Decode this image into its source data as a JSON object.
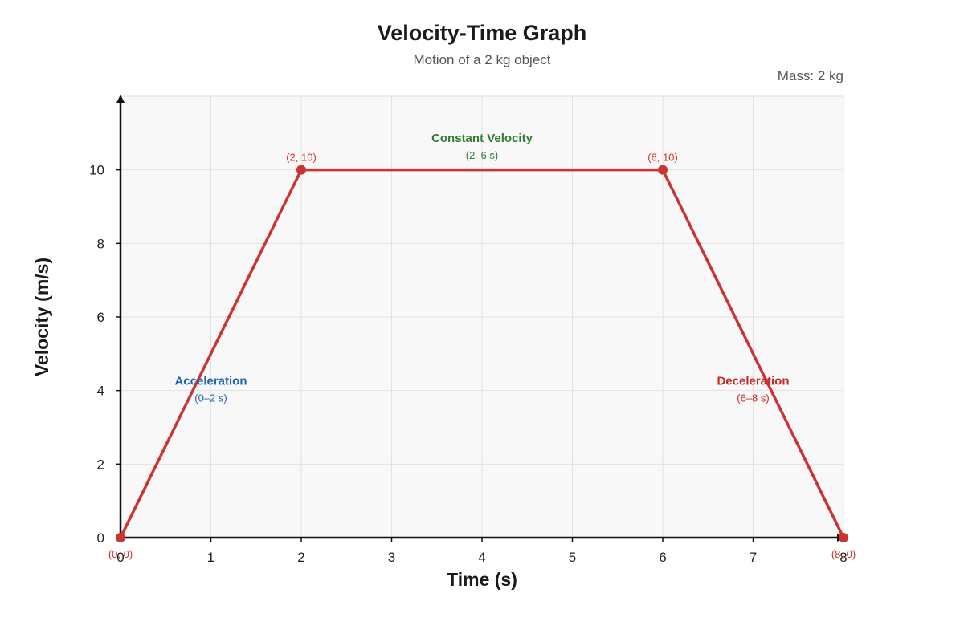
{
  "chart_data": {
    "type": "line",
    "title": "Velocity-Time Graph",
    "subtitle": "Motion of a 2 kg object",
    "note": "Mass: 2 kg",
    "xlabel": "Time (s)",
    "ylabel": "Velocity (m/s)",
    "xlim": [
      0,
      8
    ],
    "ylim": [
      0,
      12
    ],
    "x_ticks": [
      "0",
      "1",
      "2",
      "3",
      "4",
      "5",
      "6",
      "7",
      "8"
    ],
    "y_ticks": [
      "0",
      "2",
      "4",
      "6",
      "8",
      "10"
    ],
    "grid": true,
    "series": [
      {
        "x": [
          0,
          2,
          6,
          8
        ],
        "y": [
          0,
          10,
          10,
          0
        ],
        "color": "#cc3333"
      }
    ],
    "point_labels": [
      "(0, 0)",
      "(2, 10)",
      "(6, 10)",
      "(8, 0)"
    ],
    "annotations": [
      {
        "name": "Acceleration",
        "range": "(0–2 s)",
        "x": 1,
        "y": 4,
        "color": "#1f63b0"
      },
      {
        "name": "Constant Velocity",
        "range": "(2–6 s)",
        "x": 4,
        "y": 10.6,
        "color": "#2e7d32"
      },
      {
        "name": "Deceleration",
        "range": "(6–8 s)",
        "x": 7,
        "y": 4,
        "color": "#c62828"
      }
    ]
  }
}
